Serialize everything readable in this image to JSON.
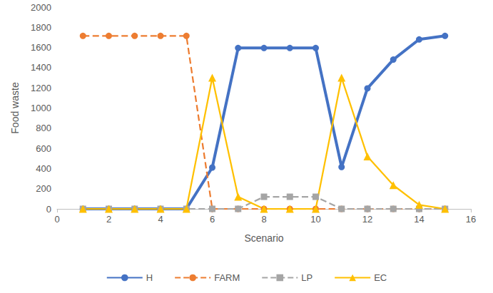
{
  "chart_data": {
    "type": "line",
    "x_label": "Scenario",
    "y_label": "Food waste",
    "x": [
      1,
      2,
      3,
      4,
      5,
      6,
      7,
      8,
      9,
      10,
      11,
      12,
      13,
      14,
      15
    ],
    "series": [
      {
        "name": "H",
        "color": "#4472c4",
        "marker": "circle",
        "line_style": "solid",
        "values": [
          0,
          0,
          0,
          0,
          0,
          410,
          1595,
          1595,
          1595,
          1595,
          415,
          1195,
          1480,
          1680,
          1715
        ]
      },
      {
        "name": "FARM",
        "color": "#ed7d31",
        "marker": "circle",
        "line_style": "dashed",
        "values": [
          1715,
          1715,
          1715,
          1715,
          1715,
          0,
          0,
          0,
          0,
          0,
          0,
          0,
          0,
          0,
          0
        ]
      },
      {
        "name": "LP",
        "color": "#a5a5a5",
        "marker": "square",
        "line_style": "dashed",
        "values": [
          0,
          0,
          0,
          0,
          0,
          0,
          0,
          120,
          120,
          120,
          0,
          0,
          0,
          0,
          0
        ]
      },
      {
        "name": "EC",
        "color": "#ffc000",
        "marker": "triangle",
        "line_style": "solid",
        "values": [
          0,
          0,
          0,
          0,
          0,
          1300,
          120,
          0,
          0,
          0,
          1300,
          520,
          235,
          40,
          0
        ]
      }
    ],
    "xlim": [
      0,
      16
    ],
    "xticks": [
      0,
      2,
      4,
      6,
      8,
      10,
      12,
      14,
      16
    ],
    "ylim": [
      0,
      2000
    ],
    "yticks": [
      0,
      200,
      400,
      600,
      800,
      1000,
      1200,
      1400,
      1600,
      1800,
      2000
    ],
    "grid": false,
    "legend": "bottom"
  }
}
